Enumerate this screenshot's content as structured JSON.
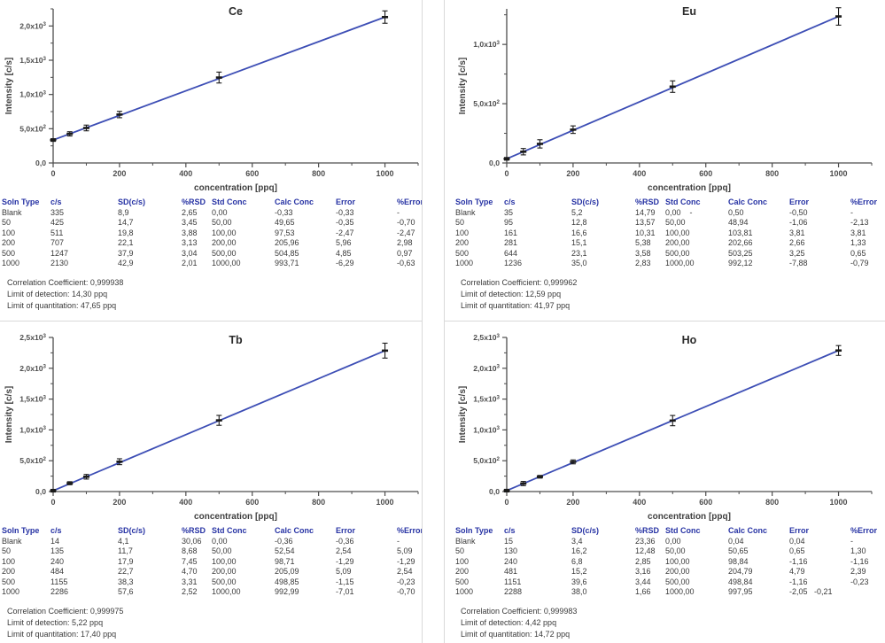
{
  "ui": {
    "table_headers": [
      "Soln Type",
      "c/s",
      "SD(c/s)",
      "%RSD",
      "Std Conc",
      "Calc Conc",
      "Error",
      "%Error"
    ],
    "colors": {
      "header_blue": "#2733a4",
      "line_blue": "#3d4eb5",
      "marker_black": "#1a1a1a",
      "axis_gray": "#4d4d4d",
      "text_dark": "#3a3a3a",
      "divider_gray": "#d9d9d9"
    }
  },
  "panels": [
    {
      "element": "Ce",
      "rows": [
        [
          "Blank",
          "335",
          "8,9",
          "2,65",
          "0,00",
          "-0,33",
          "-0,33",
          "-"
        ],
        [
          "50",
          "425",
          "14,7",
          "3,45",
          "50,00",
          "49,65",
          "-0,35",
          "-0,70"
        ],
        [
          "100",
          "511",
          "19,8",
          "3,88",
          "100,00",
          "97,53",
          "-2,47",
          "-2,47"
        ],
        [
          "200",
          "707",
          "22,1",
          "3,13",
          "200,00",
          "205,96",
          "5,96",
          "2,98"
        ],
        [
          "500",
          "1247",
          "37,9",
          "3,04",
          "500,00",
          "504,85",
          "4,85",
          "0,97"
        ],
        [
          "1000",
          "2130",
          "42,9",
          "2,01",
          "1000,00",
          "993,71",
          "-6,29",
          "-0,63"
        ]
      ],
      "stats": [
        "Correlation Coefficient: 0,999938",
        "Limit of detection: 14,30 ppq",
        "Limit of quantitation: 47,65 ppq"
      ]
    },
    {
      "element": "Eu",
      "rows": [
        [
          "Blank",
          "35",
          "5,2",
          "14,79",
          "0,00    -",
          "0,50",
          "-0,50",
          "-"
        ],
        [
          "50",
          "95",
          "12,8",
          "13,57",
          "50,00",
          "48,94",
          "-1,06",
          "-2,13"
        ],
        [
          "100",
          "161",
          "16,6",
          "10,31",
          "100,00",
          "103,81",
          "3,81",
          "3,81"
        ],
        [
          "200",
          "281",
          "15,1",
          "5,38",
          "200,00",
          "202,66",
          "2,66",
          "1,33"
        ],
        [
          "500",
          "644",
          "23,1",
          "3,58",
          "500,00",
          "503,25",
          "3,25",
          "0,65"
        ],
        [
          "1000",
          "1236",
          "35,0",
          "2,83",
          "1000,00",
          "992,12",
          "-7,88",
          "-0,79"
        ]
      ],
      "stats": [
        "Correlation Coefficient: 0,999962",
        "Limit of detection: 12,59 ppq",
        "Limit of quantitation: 41,97 ppq"
      ]
    },
    {
      "element": "Tb",
      "rows": [
        [
          "Blank",
          "14",
          "4,1",
          "30,06",
          "0,00",
          "-0,36",
          "-0,36",
          "-"
        ],
        [
          "50",
          "135",
          "11,7",
          "8,68",
          "50,00",
          "52,54",
          "2,54",
          "5,09"
        ],
        [
          "100",
          "240",
          "17,9",
          "7,45",
          "100,00",
          "98,71",
          "-1,29",
          "-1,29"
        ],
        [
          "200",
          "484",
          "22,7",
          "4,70",
          "200,00",
          "205,09",
          "5,09",
          "2,54"
        ],
        [
          "500",
          "1155",
          "38,3",
          "3,31",
          "500,00",
          "498,85",
          "-1,15",
          "-0,23"
        ],
        [
          "1000",
          "2286",
          "57,6",
          "2,52",
          "1000,00",
          "992,99",
          "-7,01",
          "-0,70"
        ]
      ],
      "stats": [
        "Correlation Coefficient: 0,999975",
        "Limit of detection: 5,22 ppq",
        "Limit of quantitation: 17,40 ppq"
      ]
    },
    {
      "element": "Ho",
      "rows": [
        [
          "Blank",
          "15",
          "3,4",
          "23,36",
          "0,00",
          "0,04",
          "0,04",
          "-"
        ],
        [
          "50",
          "130",
          "16,2",
          "12,48",
          "50,00",
          "50,65",
          "0,65",
          "1,30"
        ],
        [
          "100",
          "240",
          "6,8",
          "2,85",
          "100,00",
          "98,84",
          "-1,16",
          "-1,16"
        ],
        [
          "200",
          "481",
          "15,2",
          "3,16",
          "200,00",
          "204,79",
          "4,79",
          "2,39"
        ],
        [
          "500",
          "1151",
          "39,6",
          "3,44",
          "500,00",
          "498,84",
          "-1,16",
          "-0,23"
        ],
        [
          "1000",
          "2288",
          "38,0",
          "1,66",
          "1000,00",
          "997,95",
          "-2,05   -0,21",
          ""
        ]
      ],
      "stats": [
        "Correlation Coefficient: 0,999983",
        "Limit of detection: 4,42 ppq",
        "Limit of quantitation: 14,72 ppq"
      ]
    }
  ],
  "chart_data": [
    {
      "type": "line",
      "title": "Ce",
      "xlabel": "concentration [ppq]",
      "ylabel": "Intensity [c/s]",
      "x": [
        0,
        50,
        100,
        200,
        500,
        1000
      ],
      "series": [
        {
          "name": "Intensity (c/s)",
          "values": [
            335,
            425,
            511,
            707,
            1247,
            2130
          ]
        }
      ],
      "sd": [
        8.9,
        14.7,
        19.8,
        22.1,
        37.9,
        42.9
      ],
      "xlim": [
        0,
        1100
      ],
      "ylim": [
        0,
        2250
      ],
      "x_major_ticks": [
        0,
        200,
        400,
        600,
        800,
        1000
      ],
      "x_tick_labels": [
        "0",
        "200",
        "400",
        "600",
        "800",
        "1000"
      ],
      "x_minor_step": 100,
      "y_major_ticks": [
        0,
        500,
        1000,
        1500,
        2000
      ],
      "y_tick_labels": [
        "0,0",
        "5,0x10^2",
        "1,0x10^3",
        "1,5x10^3",
        "2,0x10^3"
      ],
      "y_minor_step": 250,
      "grid": false,
      "legend": "none"
    },
    {
      "type": "line",
      "title": "Eu",
      "xlabel": "concentration [ppq]",
      "ylabel": "Intensity [c/s]",
      "x": [
        0,
        50,
        100,
        200,
        500,
        1000
      ],
      "series": [
        {
          "name": "Intensity (c/s)",
          "values": [
            35,
            95,
            161,
            281,
            644,
            1236
          ]
        }
      ],
      "sd": [
        5.2,
        12.8,
        16.6,
        15.1,
        23.1,
        35.0
      ],
      "xlim": [
        0,
        1100
      ],
      "ylim": [
        0,
        1300
      ],
      "x_major_ticks": [
        0,
        200,
        400,
        600,
        800,
        1000
      ],
      "x_tick_labels": [
        "0",
        "200",
        "400",
        "600",
        "800",
        "1000"
      ],
      "x_minor_step": 100,
      "y_major_ticks": [
        0,
        500,
        1000
      ],
      "y_tick_labels": [
        "0,0",
        "5,0x10^2",
        "1,0x10^3"
      ],
      "y_minor_step": 250,
      "grid": false,
      "legend": "none"
    },
    {
      "type": "line",
      "title": "Tb",
      "xlabel": "concentration [ppq]",
      "ylabel": "Intensity [c/s]",
      "x": [
        0,
        50,
        100,
        200,
        500,
        1000
      ],
      "series": [
        {
          "name": "Intensity (c/s)",
          "values": [
            14,
            135,
            240,
            484,
            1155,
            2286
          ]
        }
      ],
      "sd": [
        4.1,
        11.7,
        17.9,
        22.7,
        38.3,
        57.6
      ],
      "xlim": [
        0,
        1100
      ],
      "ylim": [
        0,
        2500
      ],
      "x_major_ticks": [
        0,
        200,
        400,
        600,
        800,
        1000
      ],
      "x_tick_labels": [
        "0",
        "200",
        "400",
        "600",
        "800",
        "1000"
      ],
      "x_minor_step": 100,
      "y_major_ticks": [
        0,
        500,
        1000,
        1500,
        2000,
        2500
      ],
      "y_tick_labels": [
        "0,0",
        "5,0x10^2",
        "1,0x10^3",
        "1,5x10^3",
        "2,0x10^3",
        "2,5x10^3"
      ],
      "y_minor_step": 250,
      "grid": false,
      "legend": "none"
    },
    {
      "type": "line",
      "title": "Ho",
      "xlabel": "concentration [ppq]",
      "ylabel": "Intensity [c/s]",
      "x": [
        0,
        50,
        100,
        200,
        500,
        1000
      ],
      "series": [
        {
          "name": "Intensity (c/s)",
          "values": [
            15,
            130,
            240,
            481,
            1151,
            2288
          ]
        }
      ],
      "sd": [
        3.4,
        16.2,
        6.8,
        15.2,
        39.6,
        38.0
      ],
      "xlim": [
        0,
        1100
      ],
      "ylim": [
        0,
        2500
      ],
      "x_major_ticks": [
        0,
        200,
        400,
        600,
        800,
        1000
      ],
      "x_tick_labels": [
        "0",
        "200",
        "400",
        "600",
        "800",
        "1000"
      ],
      "x_minor_step": 100,
      "y_major_ticks": [
        0,
        500,
        1000,
        1500,
        2000,
        2500
      ],
      "y_tick_labels": [
        "0,0",
        "5,0x10^2",
        "1,0x10^3",
        "1,5x10^3",
        "2,0x10^3",
        "2,5x10^3"
      ],
      "y_minor_step": 250,
      "grid": false,
      "legend": "none"
    }
  ]
}
